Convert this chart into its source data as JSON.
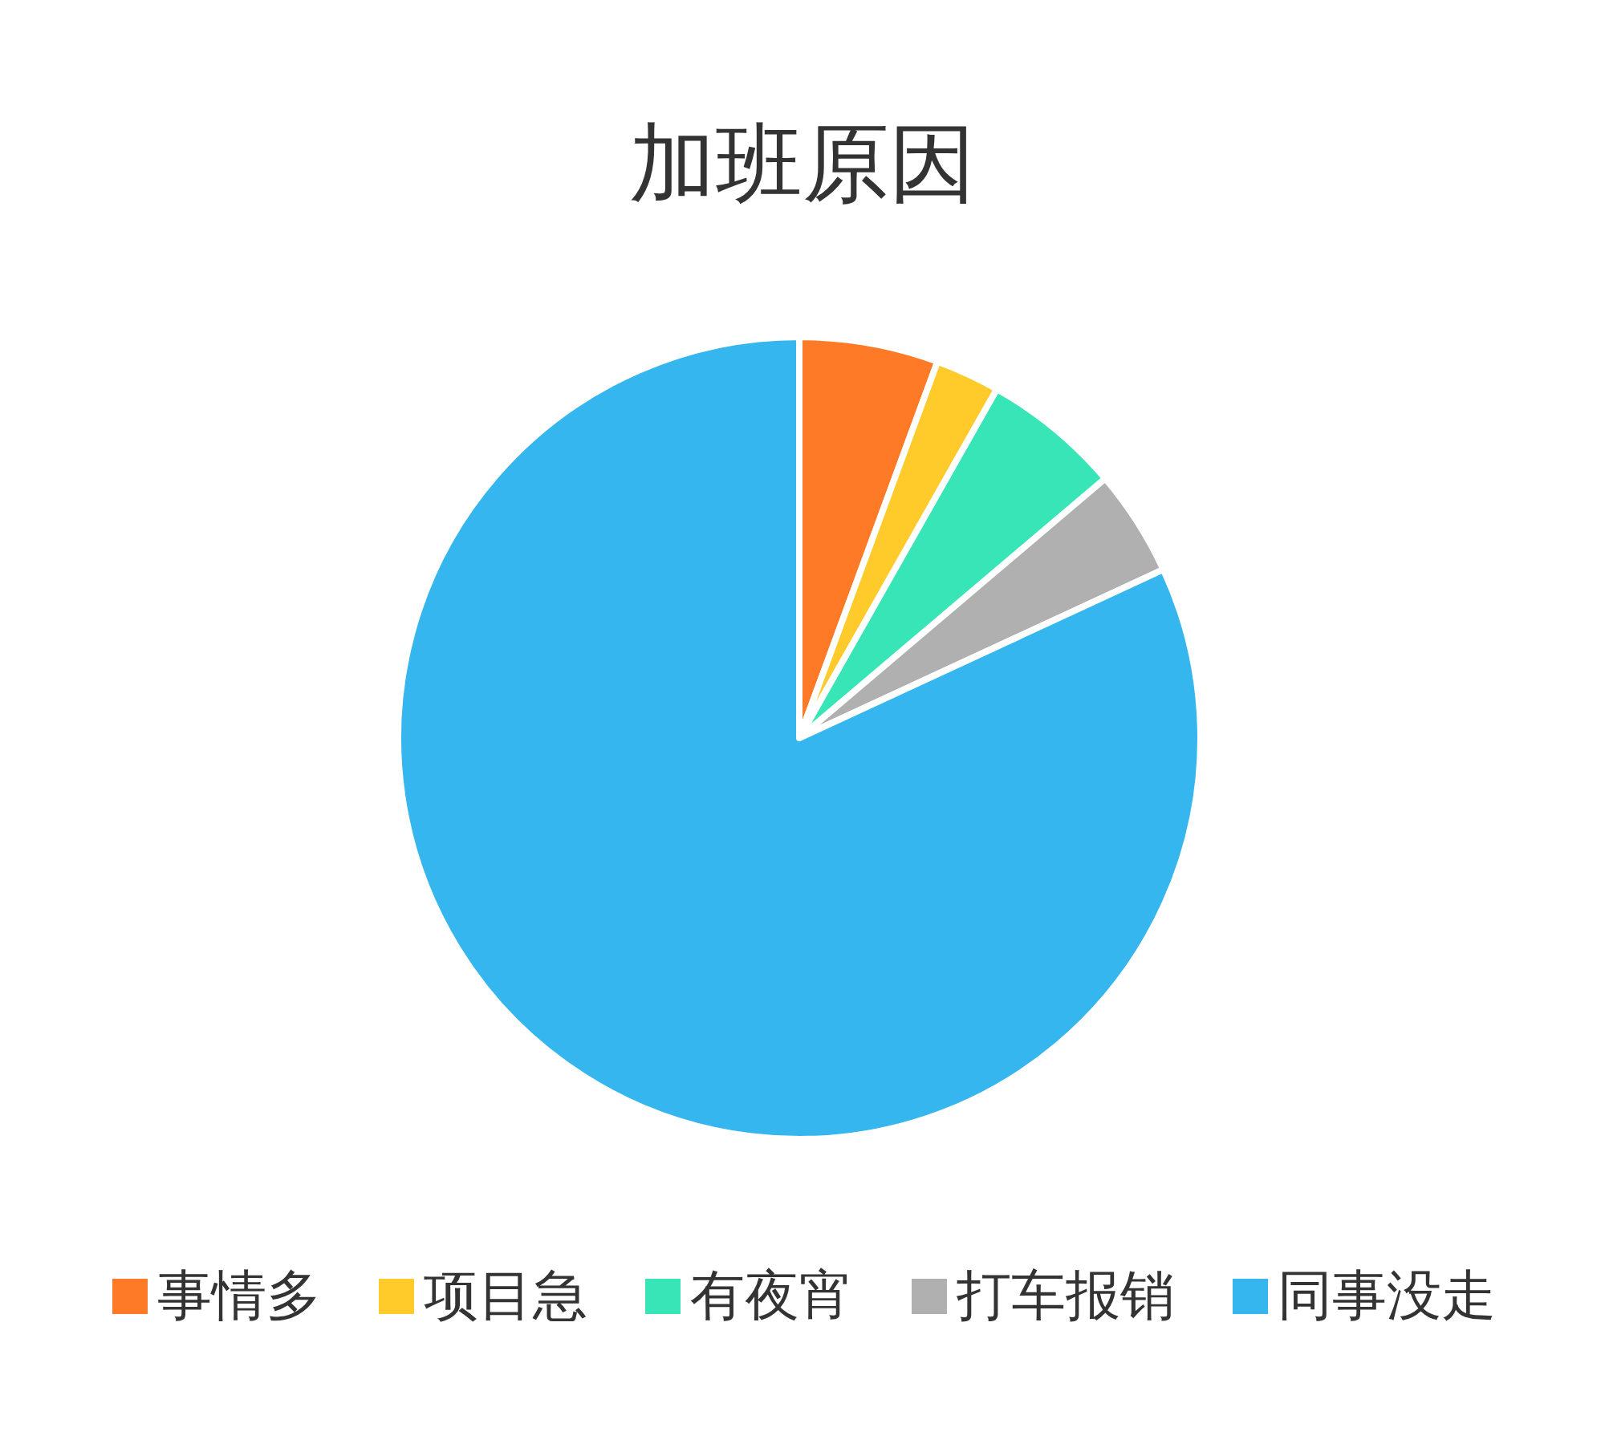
{
  "chart_data": {
    "type": "pie",
    "title": "加班原因",
    "categories": [
      "事情多",
      "项目急",
      "有夜宵",
      "打车报销",
      "同事没走"
    ],
    "values": [
      5.6,
      2.6,
      5.6,
      4.3,
      81.9
    ],
    "colors": [
      "#ff7a27",
      "#ffcb2b",
      "#38e5b7",
      "#b0b0b0",
      "#35b6ef"
    ],
    "legend": "bottom"
  }
}
